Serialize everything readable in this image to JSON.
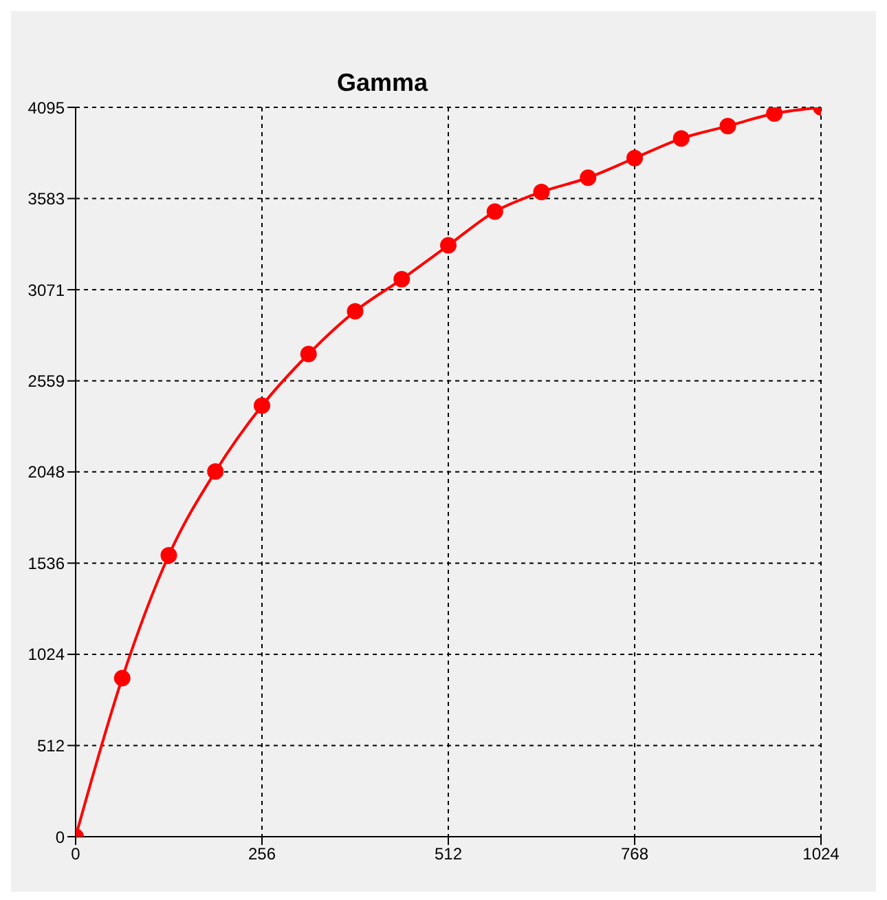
{
  "chart_data": {
    "type": "line",
    "title": "Gamma",
    "x": [
      0,
      64,
      128,
      192,
      256,
      320,
      384,
      448,
      512,
      576,
      640,
      704,
      768,
      832,
      896,
      960,
      1024
    ],
    "series": [
      {
        "color": "#ff0000",
        "values": [
          0,
          890,
          1580,
          2050,
          2420,
          2710,
          2950,
          3130,
          3320,
          3510,
          3620,
          3700,
          3810,
          3920,
          3990,
          4060,
          4095
        ]
      }
    ],
    "xlim": [
      0,
      1024
    ],
    "xticks": [
      0,
      256,
      512,
      768,
      1024
    ],
    "ylim": [
      0,
      4095
    ],
    "yticks": [
      0,
      512,
      1024,
      1536,
      2048,
      2559,
      3071,
      3583,
      4095
    ],
    "grid": true,
    "marker": "circle",
    "line_style": "solid",
    "legend": false
  }
}
